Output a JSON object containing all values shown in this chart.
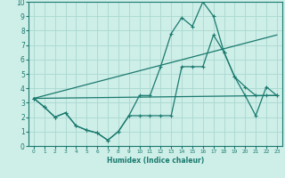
{
  "xlabel": "Humidex (Indice chaleur)",
  "xlim": [
    -0.5,
    23.5
  ],
  "ylim": [
    0,
    10
  ],
  "xticks": [
    0,
    1,
    2,
    3,
    4,
    5,
    6,
    7,
    8,
    9,
    10,
    11,
    12,
    13,
    14,
    15,
    16,
    17,
    18,
    19,
    20,
    21,
    22,
    23
  ],
  "yticks": [
    0,
    1,
    2,
    3,
    4,
    5,
    6,
    7,
    8,
    9,
    10
  ],
  "bg_color": "#ceeee8",
  "grid_color": "#a8d8d0",
  "line_color": "#1a7a6e",
  "line1_x": [
    0,
    1,
    2,
    3,
    4,
    5,
    6,
    7,
    8,
    9,
    10,
    11,
    12,
    13,
    14,
    15,
    16,
    17,
    18,
    19,
    20,
    21,
    22,
    23
  ],
  "line1_y": [
    3.3,
    2.7,
    2.0,
    2.3,
    1.4,
    1.1,
    0.9,
    0.4,
    1.0,
    2.1,
    3.5,
    3.5,
    5.5,
    7.8,
    8.9,
    8.3,
    10.0,
    9.0,
    6.5,
    4.8,
    4.1,
    3.5,
    3.5,
    3.5
  ],
  "line2_x": [
    0,
    1,
    2,
    3,
    4,
    5,
    6,
    7,
    8,
    9,
    10,
    11,
    12,
    13,
    14,
    15,
    16,
    17,
    18,
    19,
    20,
    21,
    22,
    23
  ],
  "line2_y": [
    3.3,
    2.7,
    2.0,
    2.3,
    1.4,
    1.1,
    0.9,
    0.4,
    1.0,
    2.1,
    2.1,
    2.1,
    2.1,
    2.1,
    5.5,
    5.5,
    5.5,
    7.7,
    6.5,
    4.8,
    3.5,
    2.1,
    4.1,
    3.5
  ],
  "line3_x": [
    0,
    23
  ],
  "line3_y": [
    3.3,
    3.5
  ],
  "line4_x": [
    0,
    23
  ],
  "line4_y": [
    3.3,
    7.7
  ]
}
